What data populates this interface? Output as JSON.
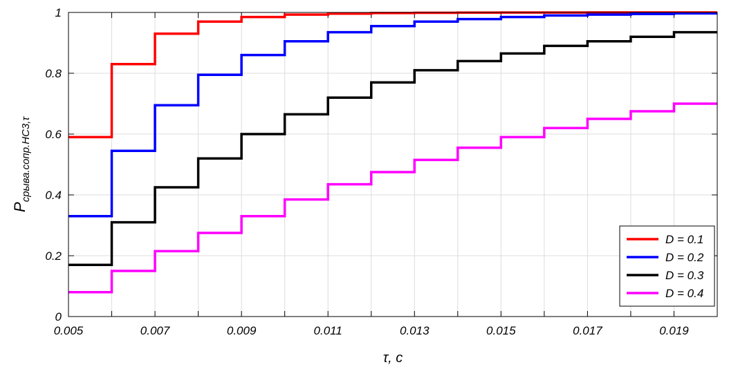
{
  "chart_data": {
    "type": "line",
    "step": true,
    "xlabel": "τ, c",
    "ylabel": {
      "main": "P",
      "sub": "срыва.сопр.НС3,τ"
    },
    "xlim": [
      0.005,
      0.02
    ],
    "ylim": [
      0,
      1
    ],
    "grid": true,
    "legend_position": "bottom-right",
    "xticks": [
      0.005,
      0.006,
      0.007,
      0.008,
      0.009,
      0.01,
      0.011,
      0.012,
      0.013,
      0.014,
      0.015,
      0.016,
      0.017,
      0.018,
      0.019,
      0.02
    ],
    "xtick_labels": [
      "0.005",
      "",
      "0.007",
      "",
      "0.009",
      "",
      "0.011",
      "",
      "0.013",
      "",
      "0.015",
      "",
      "0.017",
      "",
      "0.019",
      ""
    ],
    "yticks": [
      0,
      0.2,
      0.4,
      0.6,
      0.8,
      1
    ],
    "ytick_labels": [
      "0",
      "0.2",
      "0.4",
      "0.6",
      "0.8",
      "1"
    ],
    "x": [
      0.005,
      0.006,
      0.007,
      0.008,
      0.009,
      0.01,
      0.011,
      0.012,
      0.013,
      0.014,
      0.015,
      0.016,
      0.017,
      0.018,
      0.019,
      0.02
    ],
    "series": [
      {
        "name": "D = 0.1",
        "color": "#ff0000",
        "values": [
          0.59,
          0.83,
          0.93,
          0.97,
          0.985,
          0.993,
          0.996,
          0.998,
          0.999,
          0.9993,
          0.9996,
          0.9998,
          0.9999,
          0.9999,
          1.0,
          1.0
        ]
      },
      {
        "name": "D = 0.2",
        "color": "#0000ff",
        "values": [
          0.33,
          0.545,
          0.695,
          0.795,
          0.86,
          0.905,
          0.935,
          0.955,
          0.97,
          0.978,
          0.985,
          0.99,
          0.993,
          0.995,
          0.997,
          0.997
        ]
      },
      {
        "name": "D = 0.3",
        "color": "#000000",
        "values": [
          0.17,
          0.31,
          0.425,
          0.52,
          0.6,
          0.665,
          0.72,
          0.77,
          0.81,
          0.84,
          0.865,
          0.89,
          0.905,
          0.92,
          0.935,
          0.935
        ]
      },
      {
        "name": "D = 0.4",
        "color": "#ff00ff",
        "values": [
          0.08,
          0.15,
          0.215,
          0.275,
          0.33,
          0.385,
          0.435,
          0.475,
          0.515,
          0.555,
          0.59,
          0.62,
          0.65,
          0.675,
          0.7,
          0.7
        ]
      }
    ]
  }
}
